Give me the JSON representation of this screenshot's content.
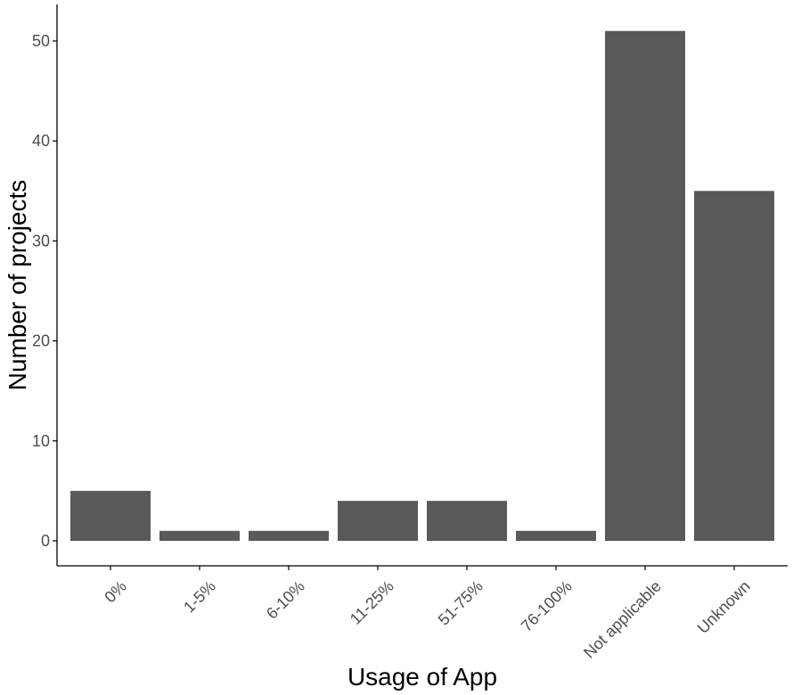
{
  "chart_data": {
    "type": "bar",
    "title": "",
    "xlabel": "Usage of App",
    "ylabel": "Number of projects",
    "categories": [
      "0%",
      "1-5%",
      "6-10%",
      "11-25%",
      "51-75%",
      "76-100%",
      "Not applicable",
      "Unknown"
    ],
    "values": [
      5,
      1,
      1,
      4,
      4,
      1,
      51,
      35
    ],
    "ylim": [
      0,
      53.5
    ],
    "yticks": [
      0,
      10,
      20,
      30,
      40,
      50
    ],
    "grid": false,
    "legend": "none",
    "bar_color": "#595959",
    "axis_color": "#000000",
    "tick_label_color": "#4d4d4d"
  }
}
